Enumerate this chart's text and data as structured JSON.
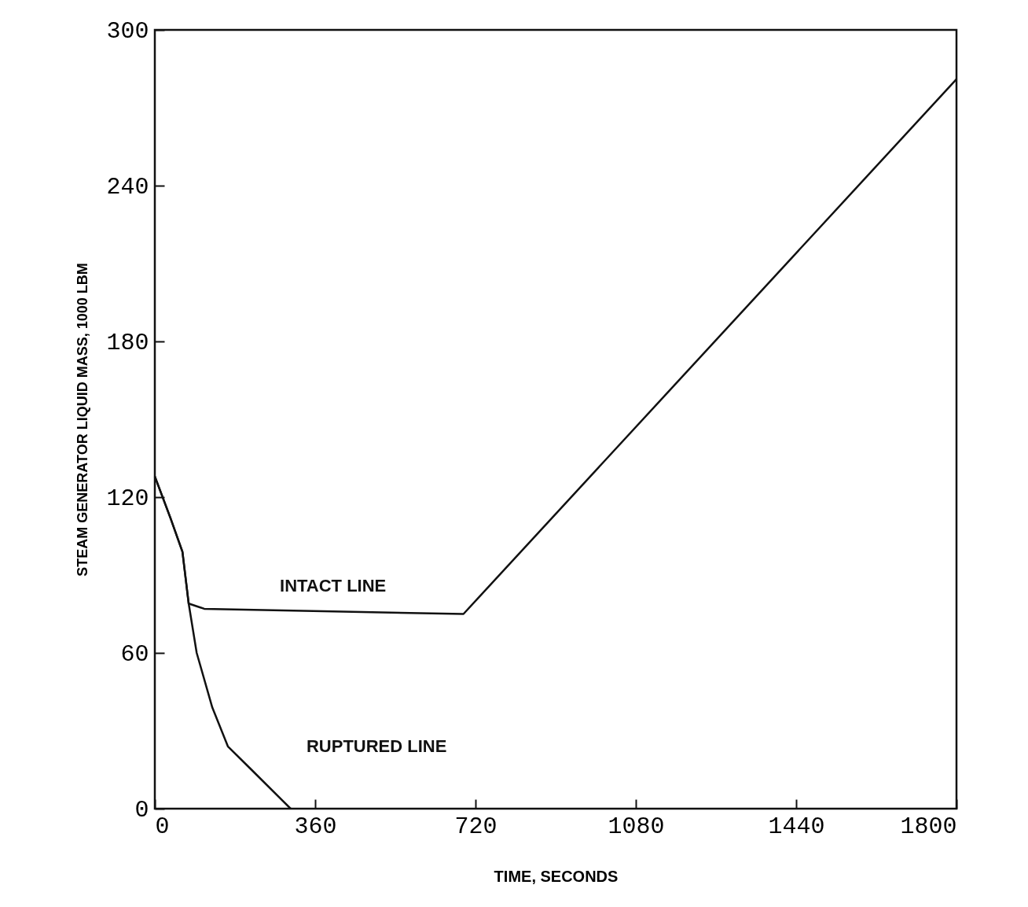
{
  "chart_data": {
    "type": "line",
    "xlabel": "TIME, SECONDS",
    "ylabel": "STEAM GENERATOR LIQUID MASS, 1000 LBM",
    "xlim": [
      0,
      1800
    ],
    "xticks": [
      0,
      360,
      720,
      1080,
      1440,
      1800
    ],
    "ylim": [
      0,
      300
    ],
    "yticks": [
      0,
      60,
      120,
      180,
      240,
      300
    ],
    "grid": false,
    "marker": "none",
    "line_style": "solid",
    "series": [
      {
        "name": "INTACT LINE",
        "color": "#111111",
        "x": [
          0,
          35,
          62,
          76,
          111,
          400,
          693,
          1800
        ],
        "values": [
          128,
          112,
          99,
          79,
          77,
          76,
          75,
          281
        ]
      },
      {
        "name": "RUPTURED LINE",
        "color": "#111111",
        "x": [
          0,
          35,
          62,
          76,
          94,
          129,
          164,
          217,
          305
        ],
        "values": [
          128,
          112,
          99,
          79,
          60,
          39,
          24,
          15,
          0
        ]
      }
    ]
  }
}
